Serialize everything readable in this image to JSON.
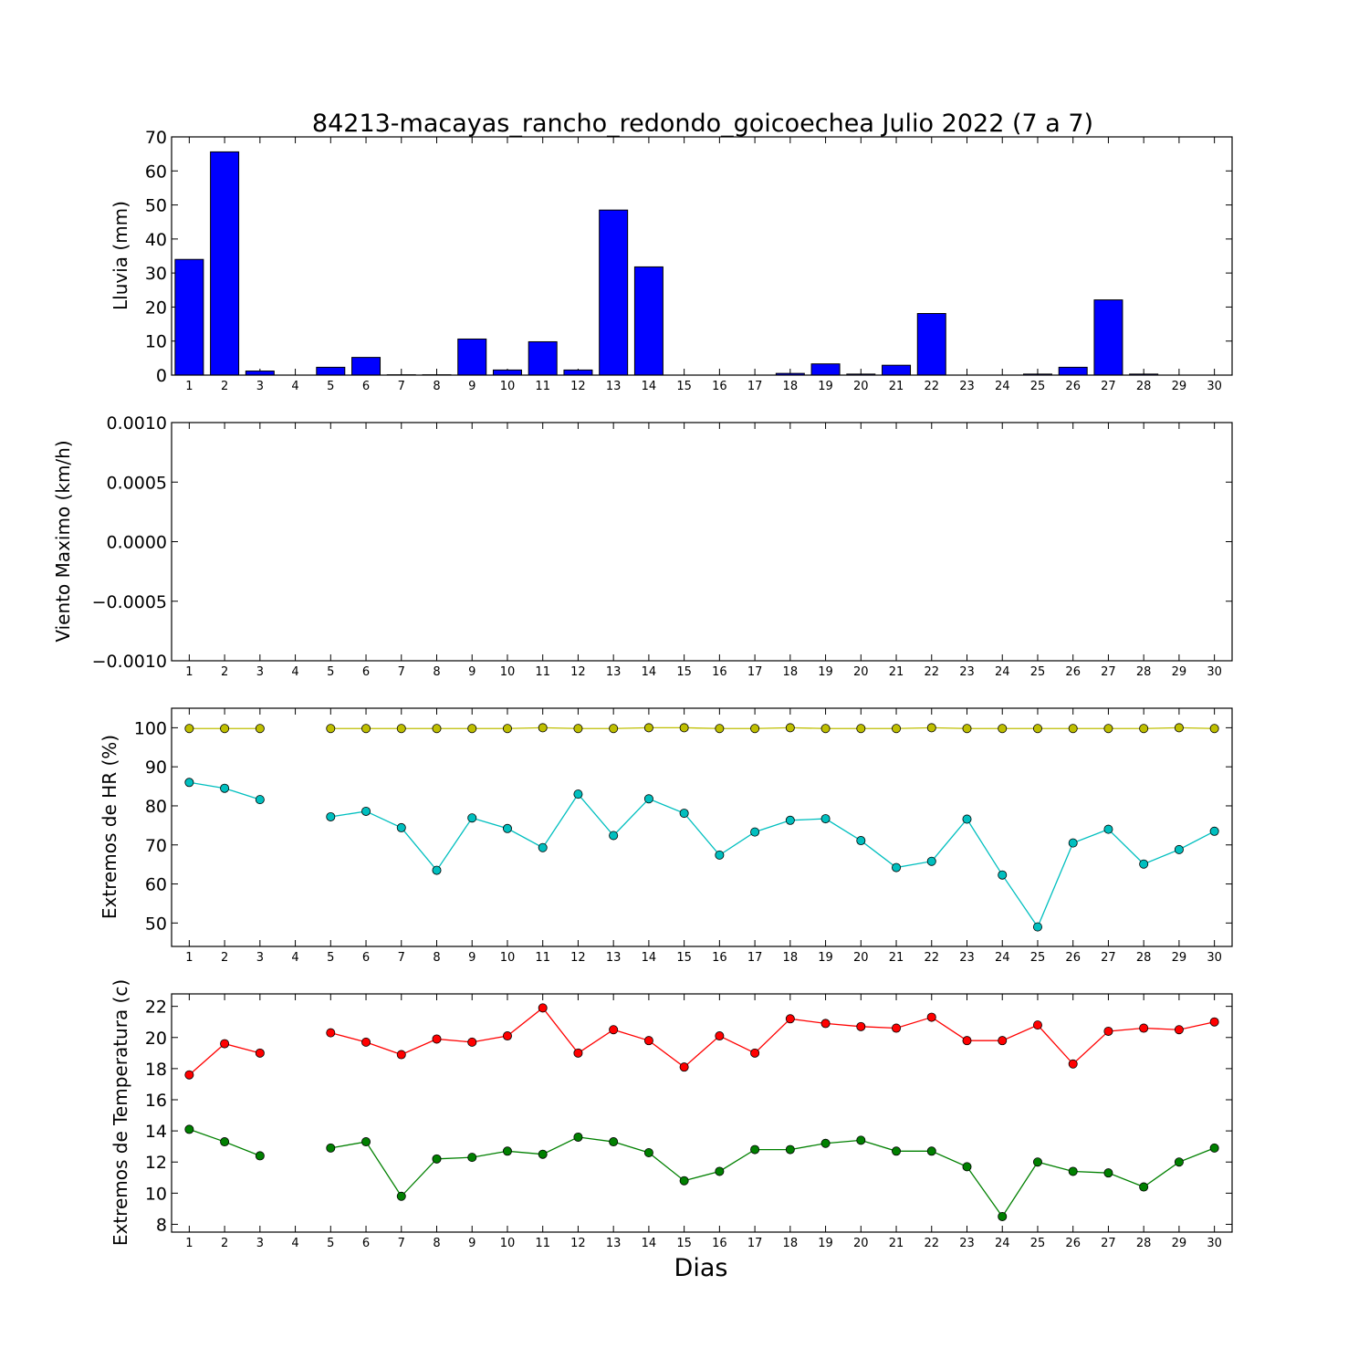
{
  "chart_data": [
    {
      "type": "bar",
      "title": "84213-macayas_rancho_redondo_goicoechea Julio 2022  (7 a 7)",
      "ylabel": "Lluvia (mm)",
      "xlabel": "",
      "ylim": [
        0,
        70
      ],
      "yticks": [
        "0",
        "10",
        "20",
        "30",
        "40",
        "50",
        "60",
        "70"
      ],
      "categories": [
        "1",
        "2",
        "3",
        "4",
        "5",
        "6",
        "7",
        "8",
        "9",
        "10",
        "11",
        "12",
        "13",
        "14",
        "15",
        "16",
        "17",
        "18",
        "19",
        "20",
        "21",
        "22",
        "23",
        "24",
        "25",
        "26",
        "27",
        "28",
        "29",
        "30"
      ],
      "values": [
        34.0,
        65.6,
        1.2,
        0,
        2.3,
        5.2,
        0.1,
        0.1,
        10.6,
        1.5,
        9.8,
        1.5,
        48.5,
        31.8,
        0,
        0,
        0,
        0.5,
        3.3,
        0.3,
        2.9,
        18.1,
        0,
        0,
        0.3,
        2.3,
        22.1,
        0.3,
        0,
        0
      ],
      "bar_color": "#0000ff"
    },
    {
      "type": "line",
      "title": "",
      "ylabel": "Viento Maximo (km/h)",
      "xlabel": "",
      "ylim": [
        -0.001,
        0.001
      ],
      "yticks": [
        "−0.0010",
        "−0.0005",
        "0.0000",
        "0.0005",
        "0.0010"
      ],
      "categories": [
        "1",
        "2",
        "3",
        "4",
        "5",
        "6",
        "7",
        "8",
        "9",
        "10",
        "11",
        "12",
        "13",
        "14",
        "15",
        "16",
        "17",
        "18",
        "19",
        "20",
        "21",
        "22",
        "23",
        "24",
        "25",
        "26",
        "27",
        "28",
        "29",
        "30"
      ],
      "series": []
    },
    {
      "type": "line",
      "title": "",
      "ylabel": "Extremos de HR (%)",
      "xlabel": "",
      "ylim": [
        44,
        105
      ],
      "yticks": [
        "50",
        "60",
        "70",
        "80",
        "90",
        "100"
      ],
      "categories": [
        "1",
        "2",
        "3",
        "4",
        "5",
        "6",
        "7",
        "8",
        "9",
        "10",
        "11",
        "12",
        "13",
        "14",
        "15",
        "16",
        "17",
        "18",
        "19",
        "20",
        "21",
        "22",
        "23",
        "24",
        "25",
        "26",
        "27",
        "28",
        "29",
        "30"
      ],
      "series": [
        {
          "color": "#bfbf00",
          "values": [
            99.8,
            99.8,
            99.8,
            null,
            99.8,
            99.8,
            99.8,
            99.8,
            99.8,
            99.8,
            100.0,
            99.8,
            99.8,
            100.0,
            100.0,
            99.8,
            99.8,
            100.0,
            99.8,
            99.8,
            99.8,
            100.0,
            99.8,
            99.8,
            99.8,
            99.8,
            99.8,
            99.8,
            100.0,
            99.8
          ]
        },
        {
          "color": "#00bfbf",
          "values": [
            86.0,
            84.5,
            81.6,
            null,
            77.2,
            78.6,
            74.4,
            63.5,
            76.9,
            74.2,
            69.3,
            83.0,
            72.4,
            81.8,
            78.1,
            67.4,
            73.3,
            76.3,
            76.7,
            71.1,
            64.2,
            65.8,
            76.6,
            62.3,
            49.0,
            70.5,
            74.0,
            65.1,
            68.8,
            73.5
          ]
        }
      ]
    },
    {
      "type": "line",
      "title": "",
      "ylabel": "Extremos de Temperatura (c)",
      "xlabel": "Dias",
      "ylim": [
        7.5,
        22.8
      ],
      "yticks": [
        "8",
        "10",
        "12",
        "14",
        "16",
        "18",
        "20",
        "22"
      ],
      "categories": [
        "1",
        "2",
        "3",
        "4",
        "5",
        "6",
        "7",
        "8",
        "9",
        "10",
        "11",
        "12",
        "13",
        "14",
        "15",
        "16",
        "17",
        "18",
        "19",
        "20",
        "21",
        "22",
        "23",
        "24",
        "25",
        "26",
        "27",
        "28",
        "29",
        "30"
      ],
      "series": [
        {
          "color": "#ff0000",
          "values": [
            17.6,
            19.6,
            19.0,
            null,
            20.3,
            19.7,
            18.9,
            19.9,
            19.7,
            20.1,
            21.9,
            19.0,
            20.5,
            19.8,
            18.1,
            20.1,
            19.0,
            21.2,
            20.9,
            20.7,
            20.6,
            21.3,
            19.8,
            19.8,
            20.8,
            18.3,
            20.4,
            20.6,
            20.5,
            21.0
          ]
        },
        {
          "color": "#008000",
          "values": [
            14.1,
            13.3,
            12.4,
            null,
            12.9,
            13.3,
            9.8,
            12.2,
            12.3,
            12.7,
            12.5,
            13.6,
            13.3,
            12.6,
            10.8,
            11.4,
            12.8,
            12.8,
            13.2,
            13.4,
            12.7,
            12.7,
            11.7,
            8.5,
            12.0,
            11.4,
            11.3,
            10.4,
            12.0,
            12.9
          ]
        }
      ]
    }
  ]
}
